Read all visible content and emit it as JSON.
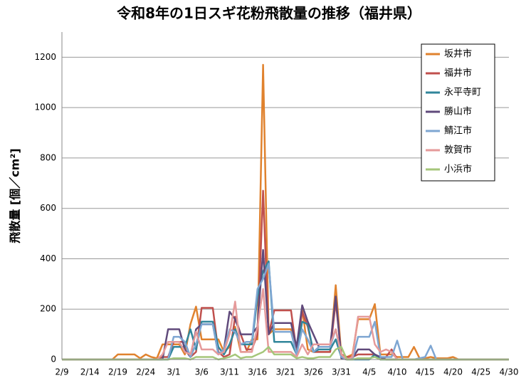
{
  "chart_data": {
    "type": "line",
    "title": "令和8年の1日スギ花粉飛散量の推移（福井県）",
    "y_label": "飛散量 [個／cm²]",
    "categories": [
      "2/9",
      null,
      null,
      null,
      null,
      "2/14",
      null,
      null,
      null,
      null,
      "2/19",
      null,
      null,
      null,
      null,
      "2/24",
      null,
      null,
      null,
      null,
      "3/1",
      null,
      null,
      null,
      null,
      "3/6",
      null,
      null,
      null,
      null,
      "3/11",
      null,
      null,
      null,
      null,
      "3/16",
      null,
      null,
      null,
      null,
      "3/21",
      null,
      null,
      null,
      null,
      "3/26",
      null,
      null,
      null,
      null,
      "3/31",
      null,
      null,
      null,
      null,
      "4/5",
      null,
      null,
      null,
      null,
      "4/10",
      null,
      null,
      null,
      null,
      "4/15",
      null,
      null,
      null,
      null,
      "4/20",
      null,
      null,
      null,
      null,
      "4/25",
      null,
      null,
      null,
      null,
      "4/30"
    ],
    "ylim": [
      0,
      1300
    ],
    "yticks": [
      0,
      200,
      400,
      600,
      800,
      1000,
      1200
    ],
    "grid": true,
    "legend": "top-right",
    "series": [
      {
        "name": "坂井市",
        "color": "#e0822e",
        "values": [
          0,
          0,
          0,
          0,
          0,
          0,
          0,
          0,
          0,
          0,
          20,
          20,
          20,
          20,
          5,
          20,
          10,
          5,
          60,
          60,
          60,
          60,
          20,
          140,
          210,
          80,
          80,
          80,
          80,
          30,
          50,
          130,
          30,
          30,
          80,
          80,
          1170,
          100,
          120,
          120,
          120,
          120,
          20,
          200,
          40,
          30,
          30,
          30,
          30,
          295,
          20,
          10,
          20,
          160,
          160,
          160,
          220,
          20,
          20,
          20,
          10,
          10,
          10,
          50,
          5,
          5,
          10,
          5,
          5,
          5,
          10,
          0,
          0,
          0,
          0,
          0,
          0,
          0,
          0,
          0,
          0
        ]
      },
      {
        "name": "福井市",
        "color": "#c0504d",
        "values": [
          0,
          0,
          0,
          0,
          0,
          0,
          0,
          0,
          0,
          0,
          0,
          0,
          0,
          0,
          0,
          0,
          0,
          0,
          10,
          10,
          70,
          70,
          70,
          10,
          30,
          205,
          205,
          205,
          30,
          10,
          20,
          170,
          100,
          40,
          40,
          100,
          670,
          100,
          195,
          195,
          195,
          195,
          30,
          190,
          130,
          30,
          30,
          30,
          30,
          230,
          20,
          10,
          10,
          20,
          20,
          20,
          20,
          0,
          10,
          40,
          0,
          0,
          0,
          0,
          0,
          0,
          0,
          0,
          0,
          0,
          0,
          0,
          0,
          0,
          0,
          0,
          0,
          0,
          0,
          0,
          0
        ]
      },
      {
        "name": "永平寺町",
        "color": "#31869b",
        "values": [
          0,
          0,
          0,
          0,
          0,
          0,
          0,
          0,
          0,
          0,
          0,
          0,
          0,
          0,
          0,
          0,
          0,
          0,
          0,
          0,
          50,
          50,
          50,
          120,
          40,
          150,
          150,
          150,
          50,
          20,
          60,
          120,
          60,
          60,
          60,
          250,
          350,
          390,
          70,
          70,
          70,
          70,
          20,
          150,
          140,
          30,
          40,
          40,
          40,
          80,
          10,
          0,
          0,
          0,
          0,
          0,
          20,
          0,
          0,
          0,
          0,
          0,
          0,
          0,
          0,
          0,
          0,
          0,
          0,
          0,
          0,
          0,
          0,
          0,
          0,
          0,
          0,
          0,
          0,
          0,
          0
        ]
      },
      {
        "name": "勝山市",
        "color": "#604a7b",
        "values": [
          0,
          0,
          0,
          0,
          0,
          0,
          0,
          0,
          0,
          0,
          0,
          0,
          0,
          0,
          0,
          0,
          0,
          0,
          0,
          120,
          120,
          120,
          40,
          10,
          120,
          140,
          140,
          140,
          20,
          40,
          190,
          160,
          100,
          100,
          100,
          130,
          435,
          100,
          145,
          145,
          145,
          145,
          50,
          215,
          150,
          100,
          50,
          50,
          50,
          250,
          5,
          0,
          5,
          40,
          40,
          40,
          20,
          10,
          0,
          0,
          0,
          0,
          0,
          0,
          0,
          0,
          0,
          0,
          0,
          0,
          0,
          0,
          0,
          0,
          0,
          0,
          0,
          0,
          0,
          0,
          0
        ]
      },
      {
        "name": "鯖江市",
        "color": "#7ea6d2",
        "values": [
          0,
          0,
          0,
          0,
          0,
          0,
          0,
          0,
          0,
          0,
          0,
          0,
          0,
          0,
          0,
          0,
          0,
          0,
          0,
          0,
          90,
          90,
          70,
          10,
          60,
          140,
          140,
          140,
          20,
          40,
          120,
          110,
          60,
          70,
          70,
          280,
          320,
          380,
          110,
          110,
          110,
          110,
          20,
          120,
          80,
          30,
          50,
          50,
          50,
          120,
          10,
          0,
          0,
          90,
          90,
          90,
          150,
          10,
          10,
          10,
          75,
          0,
          0,
          0,
          5,
          10,
          55,
          0,
          0,
          0,
          0,
          0,
          0,
          0,
          0,
          0,
          0,
          0,
          0,
          0,
          0
        ]
      },
      {
        "name": "敦賀市",
        "color": "#e59a9a",
        "values": [
          0,
          0,
          0,
          0,
          0,
          0,
          0,
          0,
          0,
          0,
          0,
          0,
          0,
          0,
          0,
          0,
          0,
          0,
          20,
          70,
          70,
          70,
          30,
          20,
          110,
          40,
          40,
          40,
          20,
          30,
          100,
          230,
          30,
          30,
          30,
          130,
          280,
          30,
          30,
          30,
          30,
          30,
          10,
          60,
          20,
          60,
          60,
          60,
          60,
          120,
          20,
          0,
          10,
          170,
          170,
          170,
          60,
          30,
          40,
          30,
          0,
          0,
          0,
          0,
          0,
          0,
          0,
          0,
          0,
          0,
          0,
          0,
          0,
          0,
          0,
          0,
          0,
          0,
          0,
          0,
          0
        ]
      },
      {
        "name": "小浜市",
        "color": "#a5c67a",
        "values": [
          0,
          0,
          0,
          0,
          0,
          0,
          0,
          0,
          0,
          0,
          0,
          0,
          0,
          0,
          0,
          0,
          0,
          0,
          0,
          0,
          5,
          5,
          5,
          0,
          10,
          10,
          10,
          10,
          0,
          5,
          10,
          20,
          5,
          10,
          10,
          20,
          30,
          50,
          20,
          20,
          20,
          20,
          5,
          10,
          5,
          5,
          10,
          10,
          10,
          40,
          50,
          0,
          0,
          5,
          5,
          5,
          10,
          0,
          0,
          0,
          0,
          0,
          0,
          0,
          0,
          0,
          0,
          0,
          0,
          0,
          0,
          0,
          0,
          0,
          0,
          0,
          0,
          0,
          0,
          0,
          0
        ]
      }
    ]
  }
}
